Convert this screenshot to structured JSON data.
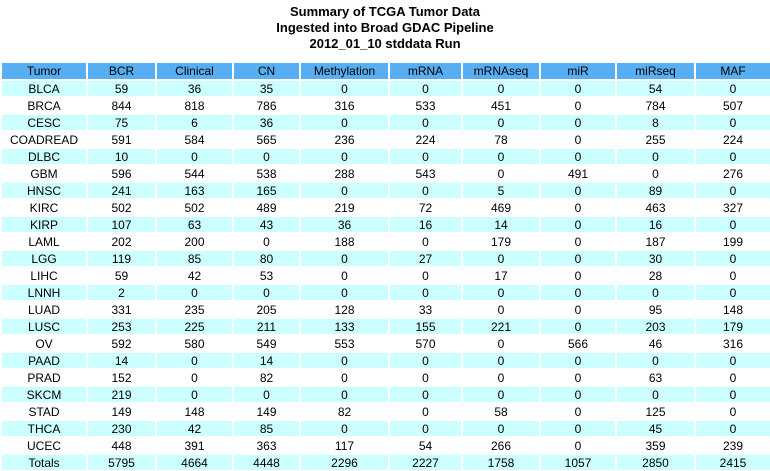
{
  "title_lines": [
    "Summary of TCGA Tumor Data",
    "Ingested into Broad GDAC Pipeline",
    "2012_01_10 stddata Run"
  ],
  "colors": {
    "header_bg": "#57aef2",
    "row_alt": "#ccffff",
    "row_bg": "#ffffff",
    "text": "#000000",
    "grid": "#ffffff"
  },
  "chart_data": {
    "type": "table",
    "title": "Summary of TCGA Tumor Data Ingested into Broad GDAC Pipeline 2012_01_10 stddata Run",
    "columns": [
      "Tumor",
      "BCR",
      "Clinical",
      "CN",
      "Methylation",
      "mRNA",
      "mRNAseq",
      "miR",
      "miRseq",
      "MAF"
    ],
    "rows": [
      {
        "tumor": "BLCA",
        "values": [
          59,
          36,
          35,
          0,
          0,
          0,
          0,
          54,
          0
        ]
      },
      {
        "tumor": "BRCA",
        "values": [
          844,
          818,
          786,
          316,
          533,
          451,
          0,
          784,
          507
        ]
      },
      {
        "tumor": "CESC",
        "values": [
          75,
          6,
          36,
          0,
          0,
          0,
          0,
          8,
          0
        ]
      },
      {
        "tumor": "COADREAD",
        "values": [
          591,
          584,
          565,
          236,
          224,
          78,
          0,
          255,
          224
        ]
      },
      {
        "tumor": "DLBC",
        "values": [
          10,
          0,
          0,
          0,
          0,
          0,
          0,
          0,
          0
        ]
      },
      {
        "tumor": "GBM",
        "values": [
          596,
          544,
          538,
          288,
          543,
          0,
          491,
          0,
          276
        ]
      },
      {
        "tumor": "HNSC",
        "values": [
          241,
          163,
          165,
          0,
          0,
          5,
          0,
          89,
          0
        ]
      },
      {
        "tumor": "KIRC",
        "values": [
          502,
          502,
          489,
          219,
          72,
          469,
          0,
          463,
          327
        ]
      },
      {
        "tumor": "KIRP",
        "values": [
          107,
          63,
          43,
          36,
          16,
          14,
          0,
          16,
          0
        ]
      },
      {
        "tumor": "LAML",
        "values": [
          202,
          200,
          0,
          188,
          0,
          179,
          0,
          187,
          199
        ]
      },
      {
        "tumor": "LGG",
        "values": [
          119,
          85,
          80,
          0,
          27,
          0,
          0,
          30,
          0
        ]
      },
      {
        "tumor": "LIHC",
        "values": [
          59,
          42,
          53,
          0,
          0,
          17,
          0,
          28,
          0
        ]
      },
      {
        "tumor": "LNNH",
        "values": [
          2,
          0,
          0,
          0,
          0,
          0,
          0,
          0,
          0
        ]
      },
      {
        "tumor": "LUAD",
        "values": [
          331,
          235,
          205,
          128,
          33,
          0,
          0,
          95,
          148
        ]
      },
      {
        "tumor": "LUSC",
        "values": [
          253,
          225,
          211,
          133,
          155,
          221,
          0,
          203,
          179
        ]
      },
      {
        "tumor": "OV",
        "values": [
          592,
          580,
          549,
          553,
          570,
          0,
          566,
          46,
          316
        ]
      },
      {
        "tumor": "PAAD",
        "values": [
          14,
          0,
          14,
          0,
          0,
          0,
          0,
          0,
          0
        ]
      },
      {
        "tumor": "PRAD",
        "values": [
          152,
          0,
          82,
          0,
          0,
          0,
          0,
          63,
          0
        ]
      },
      {
        "tumor": "SKCM",
        "values": [
          219,
          0,
          0,
          0,
          0,
          0,
          0,
          0,
          0
        ]
      },
      {
        "tumor": "STAD",
        "values": [
          149,
          148,
          149,
          82,
          0,
          58,
          0,
          125,
          0
        ]
      },
      {
        "tumor": "THCA",
        "values": [
          230,
          42,
          85,
          0,
          0,
          0,
          0,
          45,
          0
        ]
      },
      {
        "tumor": "UCEC",
        "values": [
          448,
          391,
          363,
          117,
          54,
          266,
          0,
          359,
          239
        ]
      },
      {
        "tumor": "Totals",
        "values": [
          5795,
          4664,
          4448,
          2296,
          2227,
          1758,
          1057,
          2850,
          2415
        ]
      }
    ]
  }
}
